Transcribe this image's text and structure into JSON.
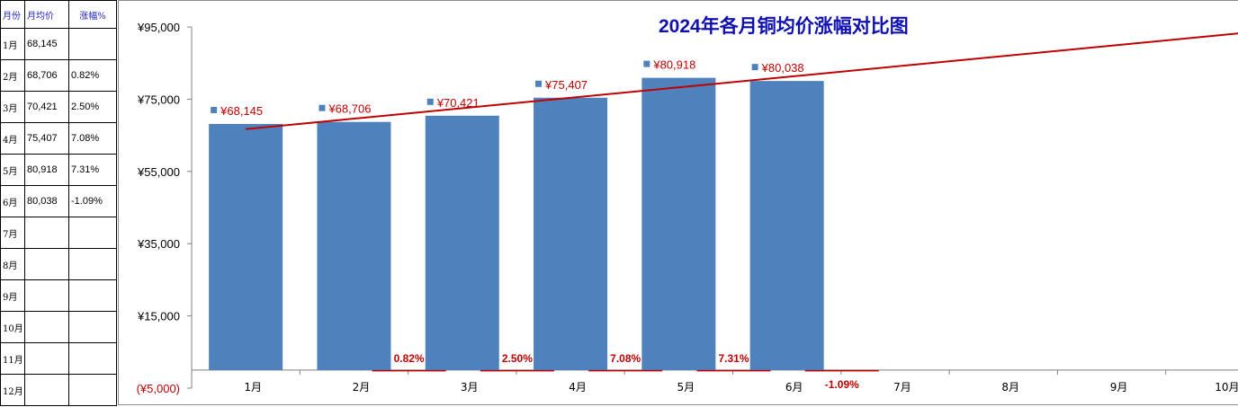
{
  "table": {
    "headers": [
      "月份",
      "月均价",
      "涨幅%"
    ],
    "rows": [
      {
        "month": "1月",
        "price": "68,145",
        "change": ""
      },
      {
        "month": "2月",
        "price": "68,706",
        "change": "0.82%"
      },
      {
        "month": "3月",
        "price": "70,421",
        "change": "2.50%"
      },
      {
        "month": "4月",
        "price": "75,407",
        "change": "7.08%"
      },
      {
        "month": "5月",
        "price": "80,918",
        "change": "7.31%"
      },
      {
        "month": "6月",
        "price": "80,038",
        "change": "-1.09%"
      },
      {
        "month": "7月",
        "price": "",
        "change": ""
      },
      {
        "month": "8月",
        "price": "",
        "change": ""
      },
      {
        "month": "9月",
        "price": "",
        "change": ""
      },
      {
        "month": "10月",
        "price": "",
        "change": ""
      },
      {
        "month": "11月",
        "price": "",
        "change": ""
      },
      {
        "month": "12月",
        "price": "",
        "change": ""
      }
    ]
  },
  "chart_data": {
    "type": "bar",
    "title": "2024年各月铜均价涨幅对比图",
    "categories": [
      "1月",
      "2月",
      "3月",
      "4月",
      "5月",
      "6月",
      "7月",
      "8月",
      "9月",
      "10月"
    ],
    "series": [
      {
        "values": [
          68145,
          68706,
          70421,
          75407,
          80918,
          80038,
          null,
          null,
          null,
          null
        ],
        "labels": [
          "¥68,145",
          "¥68,706",
          "¥70,421",
          "¥75,407",
          "¥80,918",
          "¥80,038",
          "",
          "",
          "",
          ""
        ],
        "color": "#4f81bd"
      },
      {
        "values": [
          null,
          0.82,
          2.5,
          7.08,
          7.31,
          -1.09,
          null,
          null,
          null,
          null
        ],
        "labels": [
          "",
          "0.82%",
          "2.50%",
          "7.08%",
          "7.31%",
          "-1.09%",
          "",
          "",
          "",
          ""
        ],
        "color": "#c00000"
      }
    ],
    "trendline": {
      "color": "#c00000"
    },
    "yticks": [
      "¥95,000",
      "¥75,000",
      "¥55,000",
      "¥35,000",
      "¥15,000",
      "(¥5,000)"
    ],
    "ytick_values": [
      95000,
      75000,
      55000,
      35000,
      15000,
      -5000
    ],
    "ylim": [
      -5000,
      95000
    ],
    "grid": false
  }
}
